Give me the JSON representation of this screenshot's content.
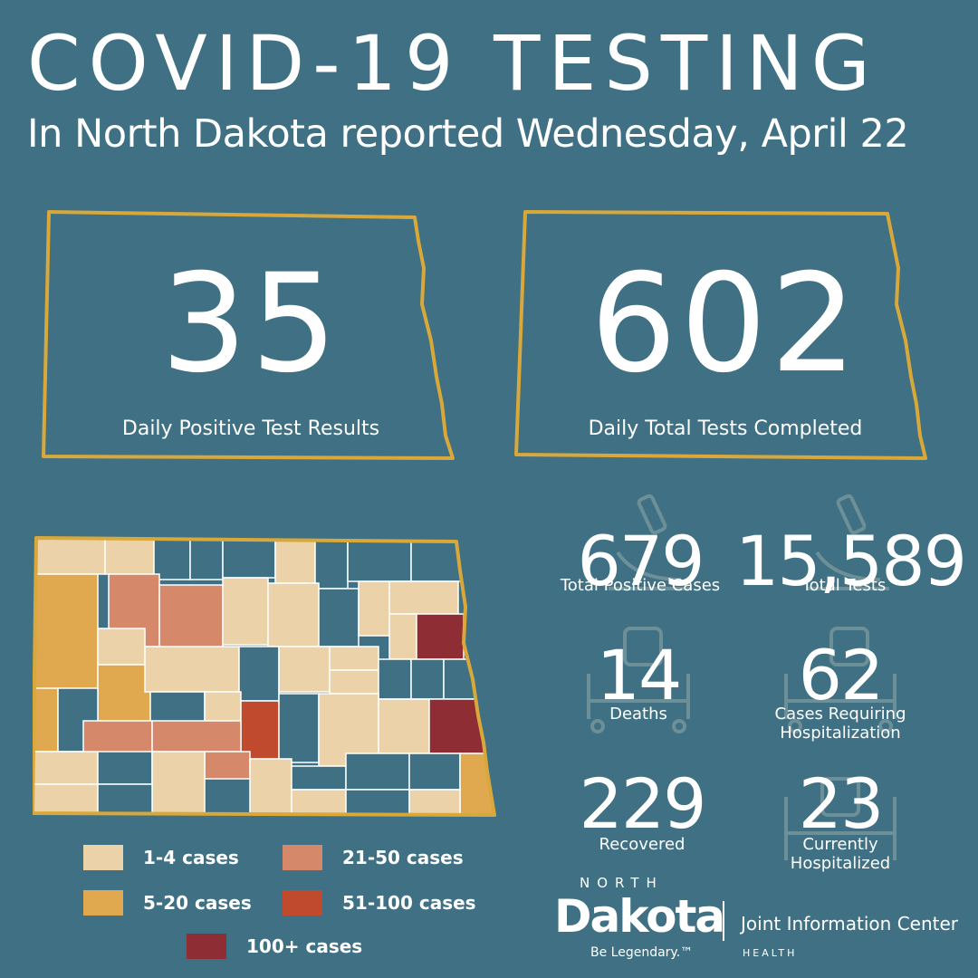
{
  "header": {
    "title": "COVID-19 TESTING",
    "subtitle": "In North Dakota reported Wednesday, April 22"
  },
  "daily": {
    "positive": {
      "value": "35",
      "label": "Daily Positive Test Results"
    },
    "tests": {
      "value": "602",
      "label": "Daily Total Tests Completed"
    }
  },
  "stats": {
    "total_positive": {
      "value": "679",
      "label": "Total Positive Cases"
    },
    "total_tests": {
      "value": "15,589",
      "label": "Total Tests"
    },
    "deaths": {
      "value": "14",
      "label": "Deaths"
    },
    "hospitalization": {
      "value": "62",
      "label_line1": "Cases Requiring",
      "label_line2": "Hospitalization"
    },
    "recovered": {
      "value": "229",
      "label": "Recovered"
    },
    "current_hosp": {
      "value": "23",
      "label_line1": "Currently",
      "label_line2": "Hospitalized"
    }
  },
  "legend": [
    {
      "label": "1-4 cases",
      "color": "#ecd2a8"
    },
    {
      "label": "21-50 cases",
      "color": "#d6896a"
    },
    {
      "label": "5-20 cases",
      "color": "#e0a94f"
    },
    {
      "label": "51-100 cases",
      "color": "#bf4a2e"
    },
    {
      "label": "100+ cases",
      "color": "#8e2d34"
    }
  ],
  "logo": {
    "north": "NORTH",
    "dakota": "Dakota",
    "tagline": "Be Legendary.™",
    "org": "Joint Information Center",
    "health": "HEALTH"
  },
  "colors": {
    "background": "#3f7083",
    "outline": "#d9a83a",
    "icon": "#6d8f97"
  }
}
